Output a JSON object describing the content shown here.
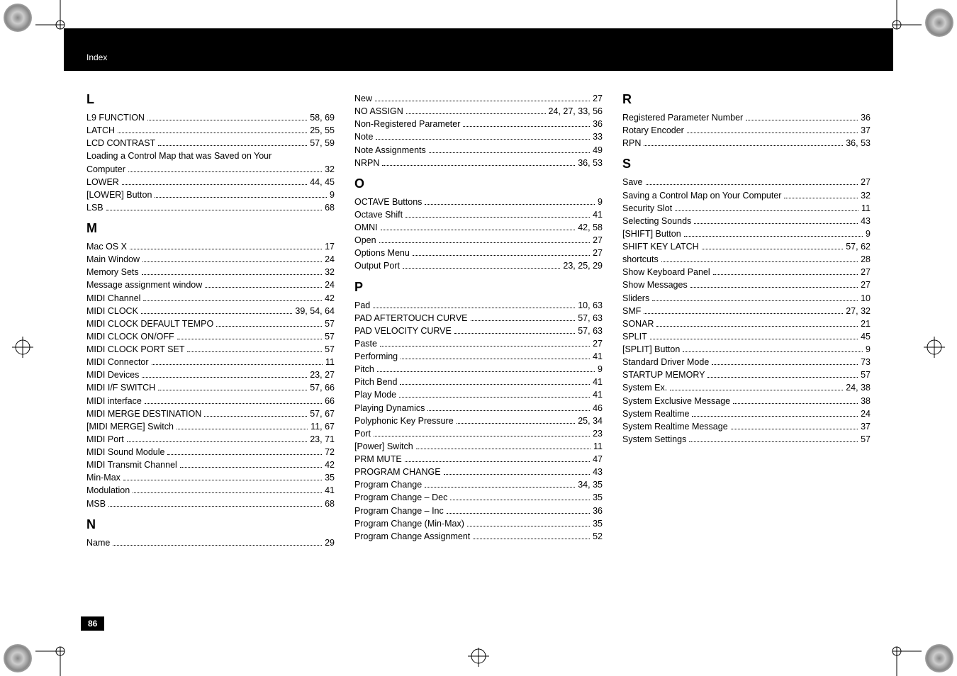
{
  "header": {
    "label": "Index"
  },
  "page_number": "86",
  "top_garbled_text": "",
  "columns": [
    {
      "sections": [
        {
          "letter": "L",
          "entries": [
            {
              "term": "L9 FUNCTION",
              "pages": "58, 69"
            },
            {
              "term": "LATCH",
              "pages": "25, 55"
            },
            {
              "term": "LCD CONTRAST",
              "pages": "57, 59"
            },
            {
              "term": "Loading a Control Map that was Saved on Your Computer",
              "pages": "32",
              "wrap": true
            },
            {
              "term": "LOWER",
              "pages": "44, 45"
            },
            {
              "term": "[LOWER] Button",
              "pages": "9"
            },
            {
              "term": "LSB",
              "pages": "68"
            }
          ]
        },
        {
          "letter": "M",
          "entries": [
            {
              "term": "Mac OS X",
              "pages": "17"
            },
            {
              "term": "Main Window",
              "pages": "24"
            },
            {
              "term": "Memory Sets",
              "pages": "32"
            },
            {
              "term": "Message assignment window",
              "pages": "24"
            },
            {
              "term": "MIDI Channel",
              "pages": "42"
            },
            {
              "term": "MIDI CLOCK",
              "pages": "39, 54, 64"
            },
            {
              "term": "MIDI CLOCK DEFAULT TEMPO",
              "pages": "57"
            },
            {
              "term": "MIDI CLOCK ON/OFF",
              "pages": "57"
            },
            {
              "term": "MIDI CLOCK PORT SET",
              "pages": "57"
            },
            {
              "term": "MIDI Connector",
              "pages": "11"
            },
            {
              "term": "MIDI Devices",
              "pages": "23, 27"
            },
            {
              "term": "MIDI I/F SWITCH",
              "pages": "57, 66"
            },
            {
              "term": "MIDI interface",
              "pages": "66"
            },
            {
              "term": "MIDI MERGE DESTINATION",
              "pages": "57, 67"
            },
            {
              "term": "[MIDI MERGE] Switch",
              "pages": "11, 67"
            },
            {
              "term": "MIDI Port",
              "pages": "23, 71"
            },
            {
              "term": "MIDI Sound Module",
              "pages": "72"
            },
            {
              "term": "MIDI Transmit Channel",
              "pages": "42"
            },
            {
              "term": "Min-Max",
              "pages": "35"
            },
            {
              "term": "Modulation",
              "pages": "41"
            },
            {
              "term": "MSB",
              "pages": "68"
            }
          ]
        },
        {
          "letter": "N",
          "entries": [
            {
              "term": "Name",
              "pages": "29"
            }
          ]
        }
      ]
    },
    {
      "sections": [
        {
          "letter": "",
          "entries": [
            {
              "term": "New",
              "pages": "27"
            },
            {
              "term": "NO ASSIGN",
              "pages": "24, 27, 33, 56"
            },
            {
              "term": "Non-Registered Parameter",
              "pages": "36"
            },
            {
              "term": "Note",
              "pages": "33"
            },
            {
              "term": "Note Assignments",
              "pages": "49"
            },
            {
              "term": "NRPN",
              "pages": "36, 53"
            }
          ]
        },
        {
          "letter": "O",
          "entries": [
            {
              "term": "OCTAVE Buttons",
              "pages": "9"
            },
            {
              "term": "Octave Shift",
              "pages": "41"
            },
            {
              "term": "OMNI",
              "pages": "42, 58"
            },
            {
              "term": "Open",
              "pages": "27"
            },
            {
              "term": "Options Menu",
              "pages": "27"
            },
            {
              "term": "Output Port",
              "pages": "23, 25, 29"
            }
          ]
        },
        {
          "letter": "P",
          "entries": [
            {
              "term": "Pad",
              "pages": "10, 63"
            },
            {
              "term": "PAD AFTERTOUCH CURVE",
              "pages": "57, 63"
            },
            {
              "term": "PAD VELOCITY CURVE",
              "pages": "57, 63"
            },
            {
              "term": "Paste",
              "pages": "27"
            },
            {
              "term": "Performing",
              "pages": "41"
            },
            {
              "term": "Pitch",
              "pages": "9"
            },
            {
              "term": "Pitch Bend",
              "pages": "41"
            },
            {
              "term": "Play Mode",
              "pages": "41"
            },
            {
              "term": "Playing Dynamics",
              "pages": "46"
            },
            {
              "term": "Polyphonic Key Pressure",
              "pages": "25, 34"
            },
            {
              "term": "Port",
              "pages": "23"
            },
            {
              "term": "[Power] Switch",
              "pages": "11"
            },
            {
              "term": "PRM MUTE",
              "pages": "47"
            },
            {
              "term": "PROGRAM CHANGE",
              "pages": "43"
            },
            {
              "term": "Program Change",
              "pages": "34, 35"
            },
            {
              "term": "Program Change – Dec",
              "pages": "35"
            },
            {
              "term": "Program Change – Inc",
              "pages": "36"
            },
            {
              "term": "Program Change (Min-Max)",
              "pages": "35"
            },
            {
              "term": "Program Change Assignment",
              "pages": "52"
            }
          ]
        }
      ]
    },
    {
      "sections": [
        {
          "letter": "R",
          "entries": [
            {
              "term": "Registered Parameter Number",
              "pages": "36"
            },
            {
              "term": "Rotary Encoder",
              "pages": "37"
            },
            {
              "term": "RPN",
              "pages": "36, 53"
            }
          ]
        },
        {
          "letter": "S",
          "entries": [
            {
              "term": "Save",
              "pages": "27"
            },
            {
              "term": "Saving a Control Map on Your Computer",
              "pages": "32"
            },
            {
              "term": "Security Slot",
              "pages": "11"
            },
            {
              "term": "Selecting Sounds",
              "pages": "43"
            },
            {
              "term": "[SHIFT] Button",
              "pages": "9"
            },
            {
              "term": "SHIFT KEY LATCH",
              "pages": "57, 62"
            },
            {
              "term": "shortcuts",
              "pages": "28"
            },
            {
              "term": "Show Keyboard Panel",
              "pages": "27"
            },
            {
              "term": "Show Messages",
              "pages": "27"
            },
            {
              "term": "Sliders",
              "pages": "10"
            },
            {
              "term": "SMF",
              "pages": "27, 32"
            },
            {
              "term": "SONAR",
              "pages": "21"
            },
            {
              "term": "SPLIT",
              "pages": "45"
            },
            {
              "term": "[SPLIT] Button",
              "pages": "9"
            },
            {
              "term": "Standard Driver Mode",
              "pages": "73"
            },
            {
              "term": "STARTUP MEMORY",
              "pages": "57"
            },
            {
              "term": "System Ex.",
              "pages": "24, 38"
            },
            {
              "term": "System Exclusive Message",
              "pages": "38"
            },
            {
              "term": "System Realtime",
              "pages": "24"
            },
            {
              "term": "System Realtime Message",
              "pages": "37"
            },
            {
              "term": "System Settings",
              "pages": "57"
            }
          ]
        }
      ]
    }
  ]
}
